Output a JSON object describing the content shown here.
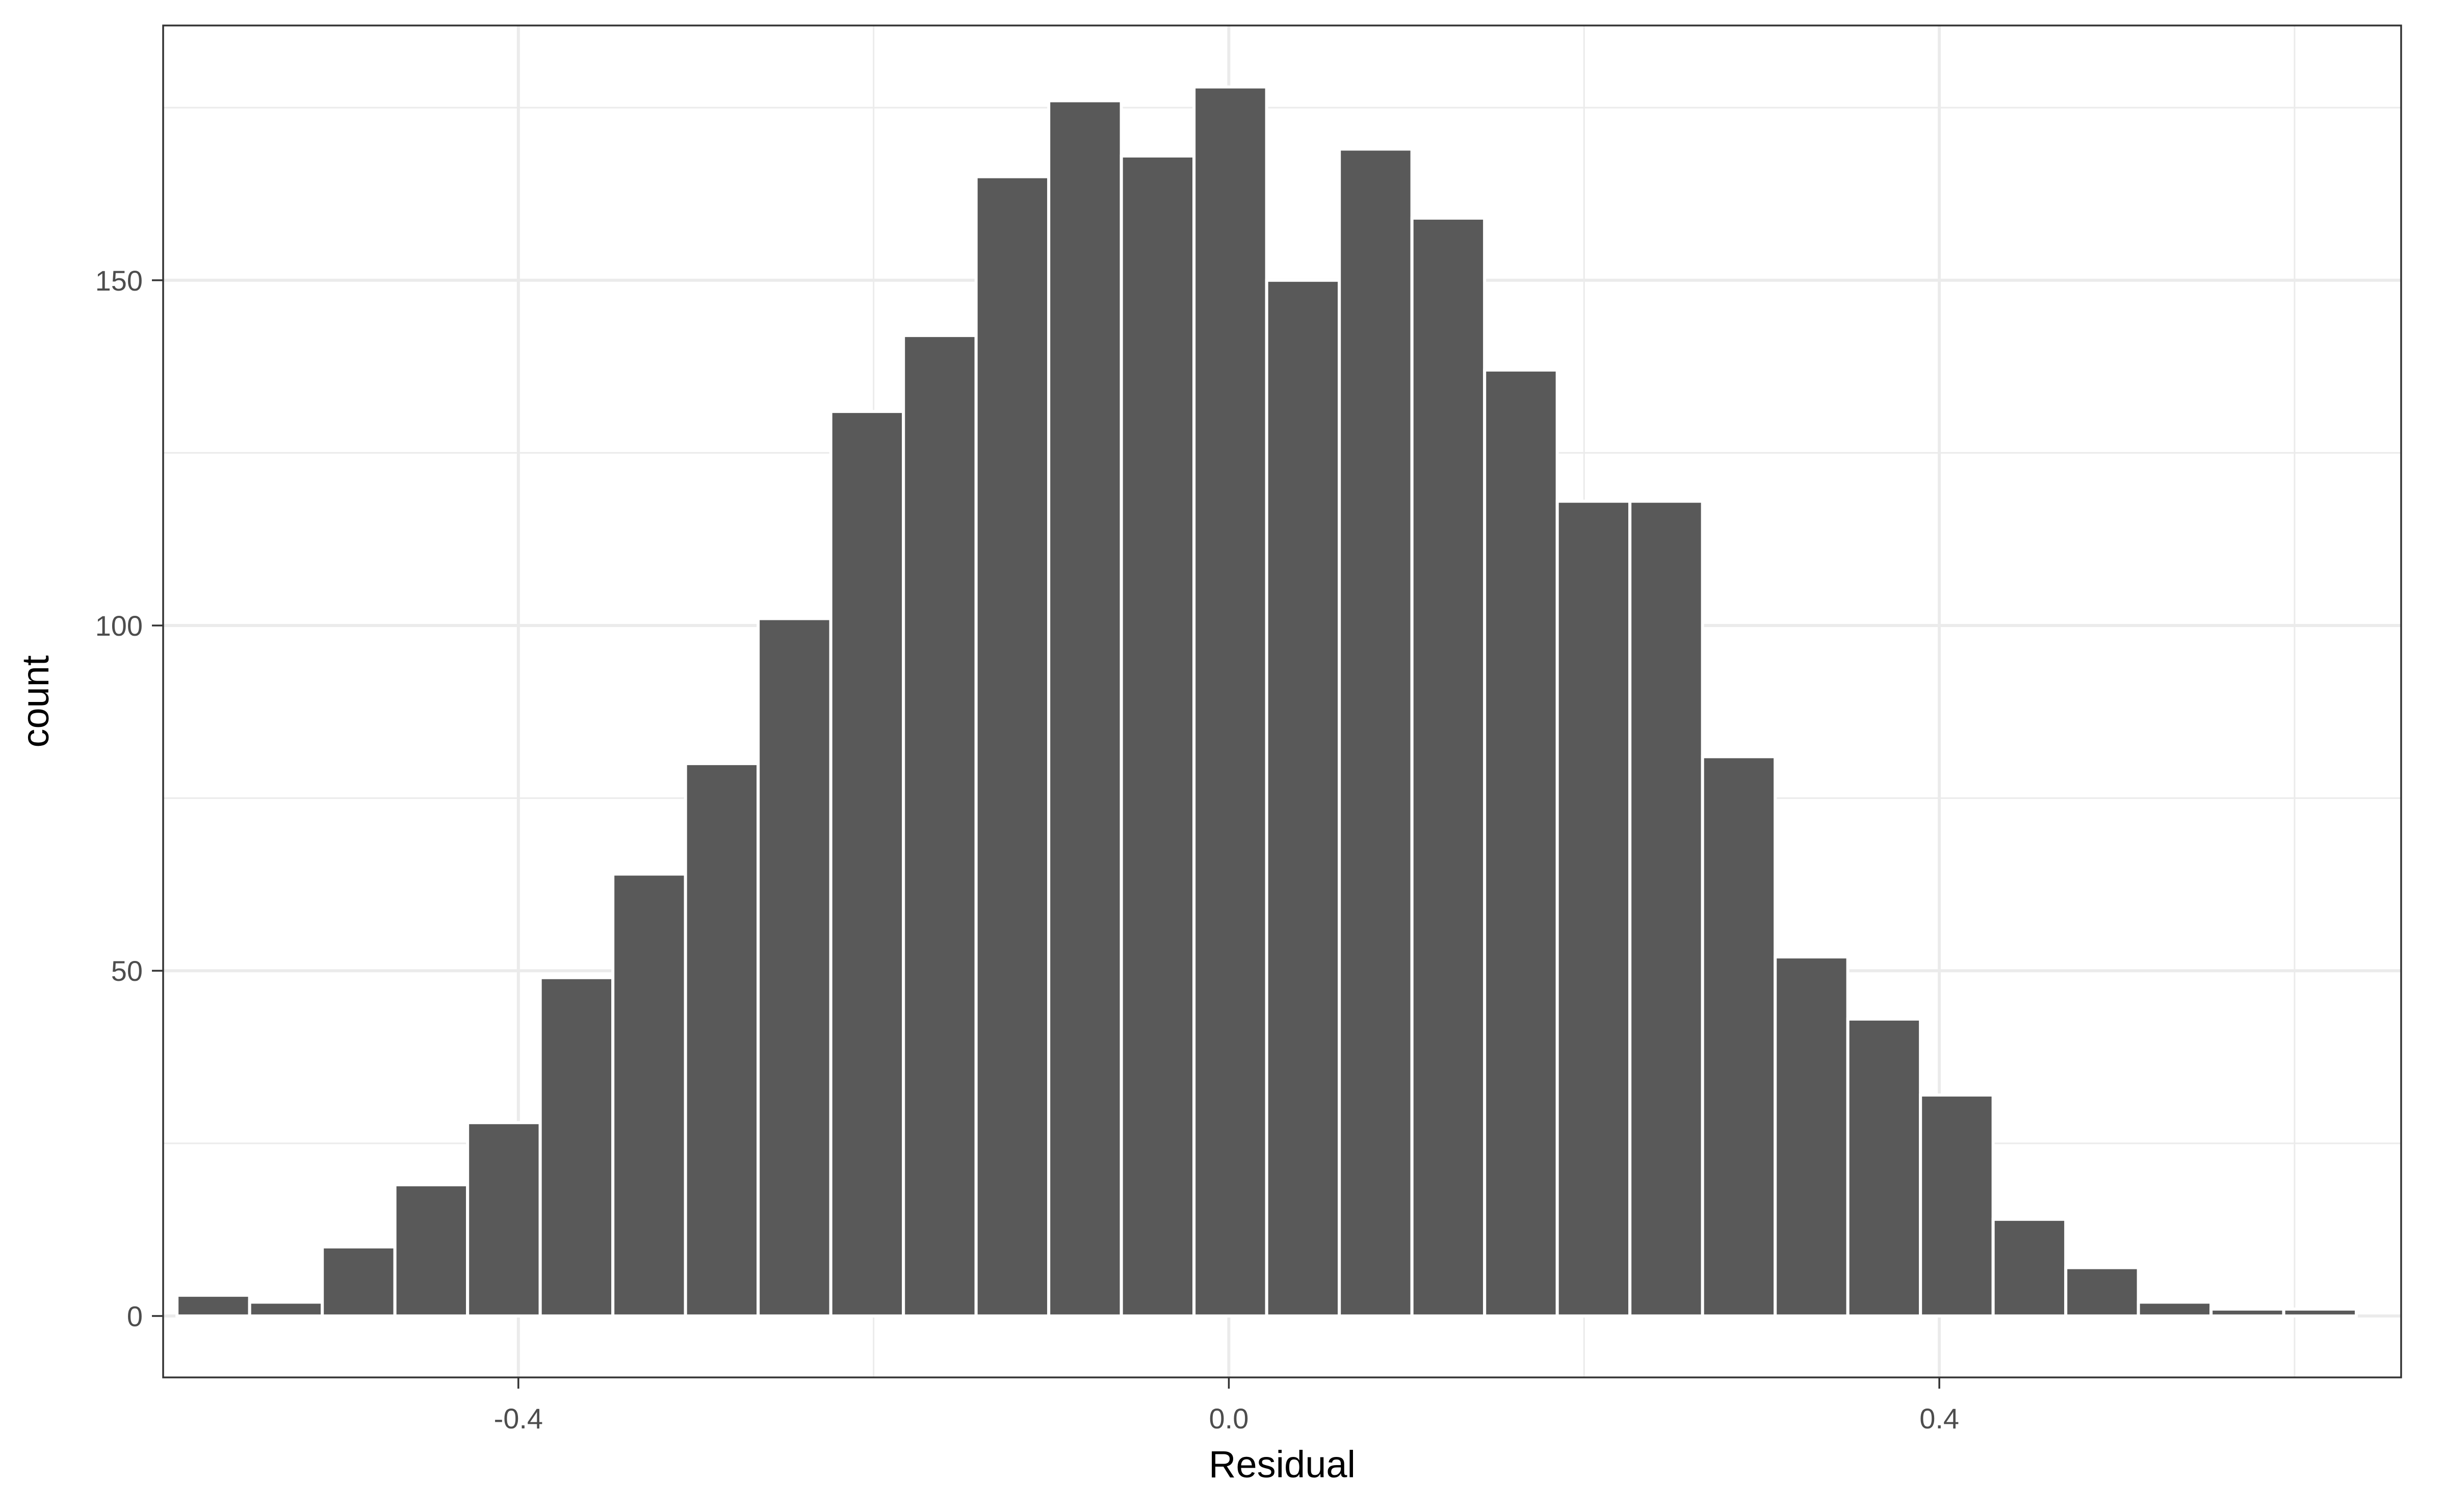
{
  "chart_data": {
    "type": "bar",
    "subtype": "histogram",
    "xlabel": "Residual",
    "ylabel": "count",
    "xlim": [
      -0.6,
      0.66
    ],
    "ylim": [
      -8.9,
      186.9
    ],
    "x_ticks": [
      {
        "value": -0.4,
        "label": "-0.4"
      },
      {
        "value": 0.0,
        "label": "0.0"
      },
      {
        "value": 0.4,
        "label": "0.4"
      }
    ],
    "y_ticks": [
      {
        "value": 0,
        "label": "0"
      },
      {
        "value": 50,
        "label": "50"
      },
      {
        "value": 100,
        "label": "100"
      },
      {
        "value": 150,
        "label": "150"
      }
    ],
    "x_minor_ticks": [
      -0.6,
      -0.2,
      0.2,
      0.6
    ],
    "y_minor_ticks": [
      25,
      75,
      125,
      175
    ],
    "bin_width": 0.04088,
    "bins": [
      {
        "x0": -0.5922,
        "count": 3
      },
      {
        "x0": -0.5513,
        "count": 2
      },
      {
        "x0": -0.5104,
        "count": 10
      },
      {
        "x0": -0.4695,
        "count": 19
      },
      {
        "x0": -0.4286,
        "count": 28
      },
      {
        "x0": -0.3877,
        "count": 49
      },
      {
        "x0": -0.3468,
        "count": 64
      },
      {
        "x0": -0.3059,
        "count": 80
      },
      {
        "x0": -0.265,
        "count": 101
      },
      {
        "x0": -0.2241,
        "count": 131
      },
      {
        "x0": -0.1832,
        "count": 142
      },
      {
        "x0": -0.1423,
        "count": 165
      },
      {
        "x0": -0.1014,
        "count": 176
      },
      {
        "x0": -0.0605,
        "count": 168
      },
      {
        "x0": -0.0196,
        "count": 178
      },
      {
        "x0": 0.0213,
        "count": 150
      },
      {
        "x0": 0.0622,
        "count": 169
      },
      {
        "x0": 0.1031,
        "count": 159
      },
      {
        "x0": 0.144,
        "count": 137
      },
      {
        "x0": 0.1849,
        "count": 118
      },
      {
        "x0": 0.2258,
        "count": 118
      },
      {
        "x0": 0.2667,
        "count": 81
      },
      {
        "x0": 0.3076,
        "count": 52
      },
      {
        "x0": 0.3485,
        "count": 43
      },
      {
        "x0": 0.3894,
        "count": 32
      },
      {
        "x0": 0.4303,
        "count": 14
      },
      {
        "x0": 0.4712,
        "count": 7
      },
      {
        "x0": 0.5121,
        "count": 2
      },
      {
        "x0": 0.553,
        "count": 1
      },
      {
        "x0": 0.5939,
        "count": 1
      }
    ],
    "grid": true,
    "legend": "none",
    "colors": {
      "bar_fill": "#595959",
      "bar_outline": "#ffffff",
      "grid": "#ebebeb",
      "panel_border": "#333333",
      "background": "#ffffff"
    }
  }
}
